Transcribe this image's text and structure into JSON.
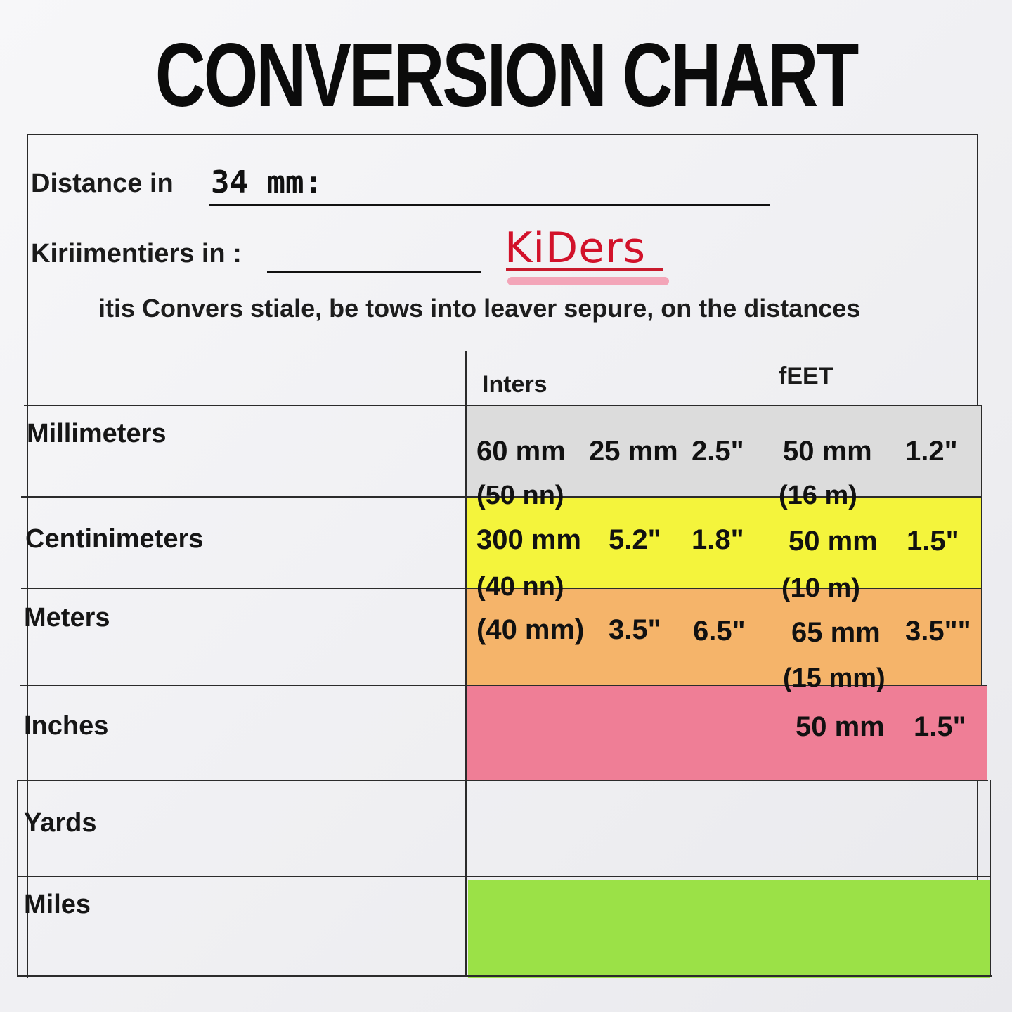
{
  "title": "CONVERSION CHART",
  "form": {
    "distance_label": "Distance in",
    "distance_value": "34 mm:",
    "kilometers_label": "Kiriimentiers in :",
    "kilometers_value": "KiDers",
    "note": "itis Convers stiale, be tows into leaver sepure, on the distances"
  },
  "table": {
    "columns": [
      "Inters",
      "fEET"
    ],
    "rows": [
      {
        "label": "Millimeters",
        "color": "#d9d9d9",
        "cells": [
          "60 mm",
          "25 mm",
          "2.5\"",
          "50 mm",
          "1.2\""
        ],
        "sub": [
          "(50 nn)",
          "(16 m)"
        ]
      },
      {
        "label": "Centinimeters",
        "color": "#f6f53a",
        "cells": [
          "300 mm",
          "5.2\"",
          "1.8\"",
          "50 mm",
          "1.5\""
        ],
        "sub": [
          "(40 nn)",
          "(10 m)"
        ]
      },
      {
        "label": "Meters",
        "color": "#f6b565",
        "cells": [
          "(40 mm)",
          "3.5\"",
          "6.5\"",
          "65 mm",
          "3.5\"\""
        ],
        "sub": [
          "",
          "(15 mm)"
        ]
      },
      {
        "label": "Inches",
        "color": "#f07b93",
        "cells": [
          "",
          "",
          "",
          "50 mm",
          "1.5\""
        ],
        "sub": [
          "",
          ""
        ]
      },
      {
        "label": "Yards",
        "color": "",
        "cells": [],
        "sub": []
      },
      {
        "label": "Miles",
        "color": "#9ce045",
        "cells": [],
        "sub": []
      }
    ]
  }
}
